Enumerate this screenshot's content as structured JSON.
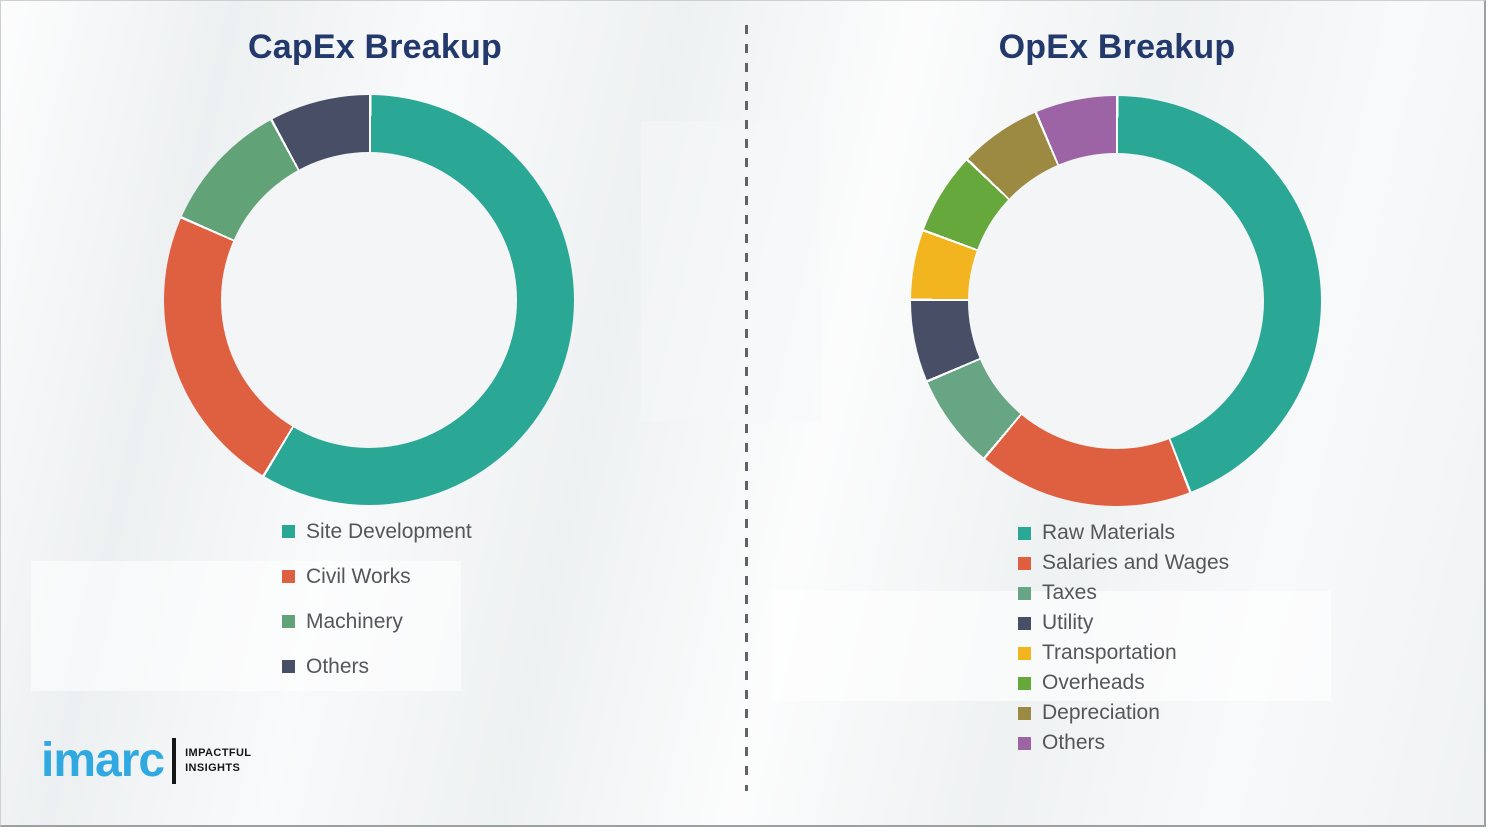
{
  "theme": {
    "background_color": "#eff1f2",
    "title_color": "#24396b",
    "legend_text_color": "#54565a",
    "divider_color": "#5f6266",
    "segment_separator_color": "#ffffff",
    "donut_hole_color": "#f4f5f6"
  },
  "chart_data": [
    {
      "type": "pie",
      "subtype": "donut",
      "title": "CapEx Breakup",
      "labels": [
        "Site Development",
        "Civil Works",
        "Machinery",
        "Others"
      ],
      "values": [
        58.5,
        23,
        10.5,
        8
      ],
      "colors": [
        "#2aa795",
        "#df5f41",
        "#61a377",
        "#474e66"
      ],
      "start_angle_deg": 0,
      "direction": "clockwise",
      "legend_position": "bottom-left"
    },
    {
      "type": "pie",
      "subtype": "donut",
      "title": "OpEx Breakup",
      "labels": [
        "Raw Materials",
        "Salaries and Wages",
        "Taxes",
        "Utility",
        "Transportation",
        "Overheads",
        "Depreciation",
        "Others"
      ],
      "values": [
        44,
        17,
        7.5,
        6.5,
        5.5,
        6.5,
        6.5,
        6.5
      ],
      "colors": [
        "#2aa795",
        "#df5f41",
        "#68a584",
        "#474e66",
        "#f2b51f",
        "#67a83c",
        "#9c8a42",
        "#9c64a5"
      ],
      "start_angle_deg": 0,
      "direction": "clockwise",
      "legend_position": "bottom-left"
    }
  ],
  "logo": {
    "brand": "imarc",
    "tagline_line1": "IMPACTFUL",
    "tagline_line2": "INSIGHTS",
    "brand_color": "#2fa9e0"
  }
}
